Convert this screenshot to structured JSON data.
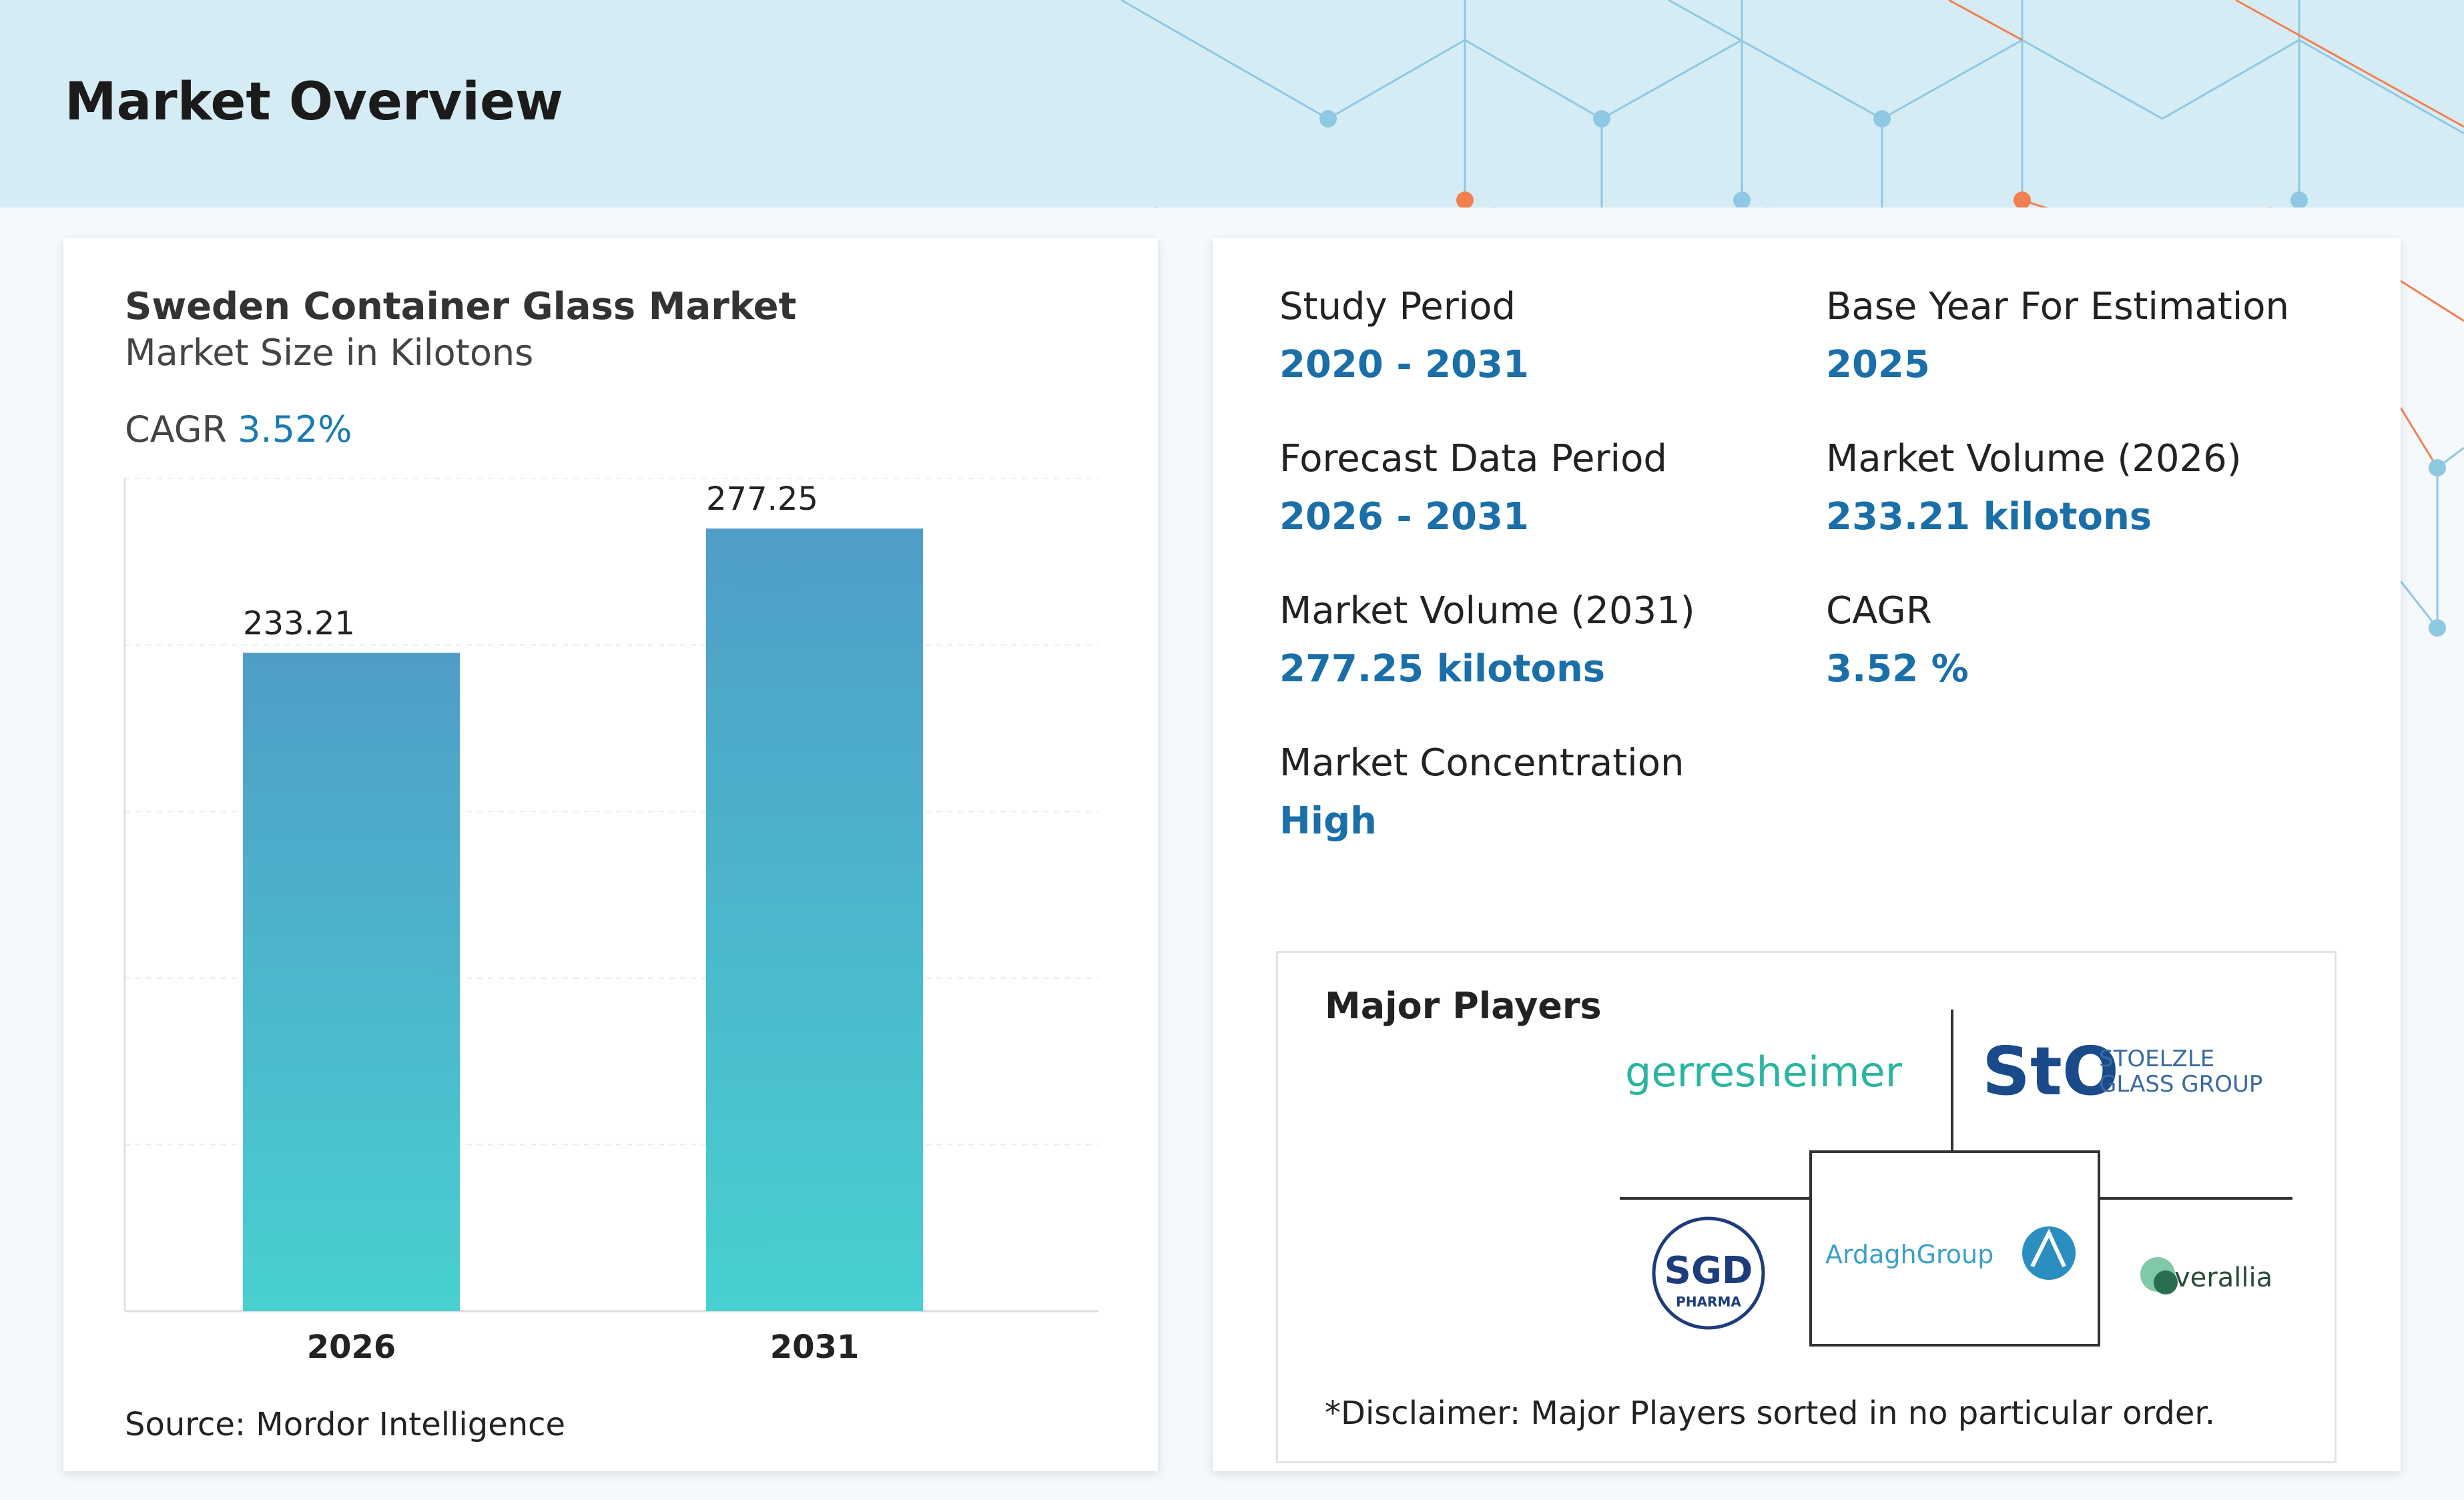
{
  "header": {
    "title": "Market Overview"
  },
  "chart_card": {
    "title": "Sweden Container Glass Market",
    "subtitle": "Market Size in Kilotons",
    "cagr_label": "CAGR",
    "cagr_value": "3.52%",
    "source": "Source: Mordor Intelligence"
  },
  "chart_data": {
    "type": "bar",
    "categories": [
      "2026",
      "2031"
    ],
    "values": [
      233.21,
      277.25
    ],
    "value_labels": [
      "233.21",
      "277.25"
    ],
    "title": "Sweden Container Glass Market",
    "subtitle": "Market Size in Kilotons",
    "xlabel": "",
    "ylabel": "",
    "ylim": [
      0,
      295
    ],
    "grid": true,
    "bar_gradient": [
      "#4f9dc7",
      "#48d0d0"
    ]
  },
  "stats": [
    {
      "label": "Study Period",
      "value": "2020 - 2031"
    },
    {
      "label": "Base Year For Estimation",
      "value": "2025"
    },
    {
      "label": "Forecast Data Period",
      "value": "2026 - 2031"
    },
    {
      "label": "Market Volume (2026)",
      "value": "233.21 kilotons"
    },
    {
      "label": "Market Volume (2031)",
      "value": "277.25 kilotons"
    },
    {
      "label": "CAGR",
      "value": "3.52 %"
    },
    {
      "label": "Market Concentration",
      "value": "High"
    }
  ],
  "players": {
    "title": "Major Players",
    "disclaimer": "*Disclaimer: Major Players sorted in no particular order.",
    "logos": [
      {
        "name": "gerresheimer",
        "text": "gerresheimer",
        "color": "#2bb5a0"
      },
      {
        "name": "stoelzle",
        "mark": "StO",
        "line1": "STOELZLE",
        "line2": "GLASS GROUP",
        "color": "#1a4a8a"
      },
      {
        "name": "sgd-pharma",
        "mark": "SGD",
        "sub": "PHARMA",
        "color": "#1c3c7c"
      },
      {
        "name": "ardagh",
        "text": "ArdaghGroup",
        "color": "#3aa0c8"
      },
      {
        "name": "verallia",
        "text": "verallia",
        "color": "#2a6e4f"
      }
    ]
  },
  "colors": {
    "accent": "#1a6fa8",
    "header_bg": "#d6ecf4"
  }
}
